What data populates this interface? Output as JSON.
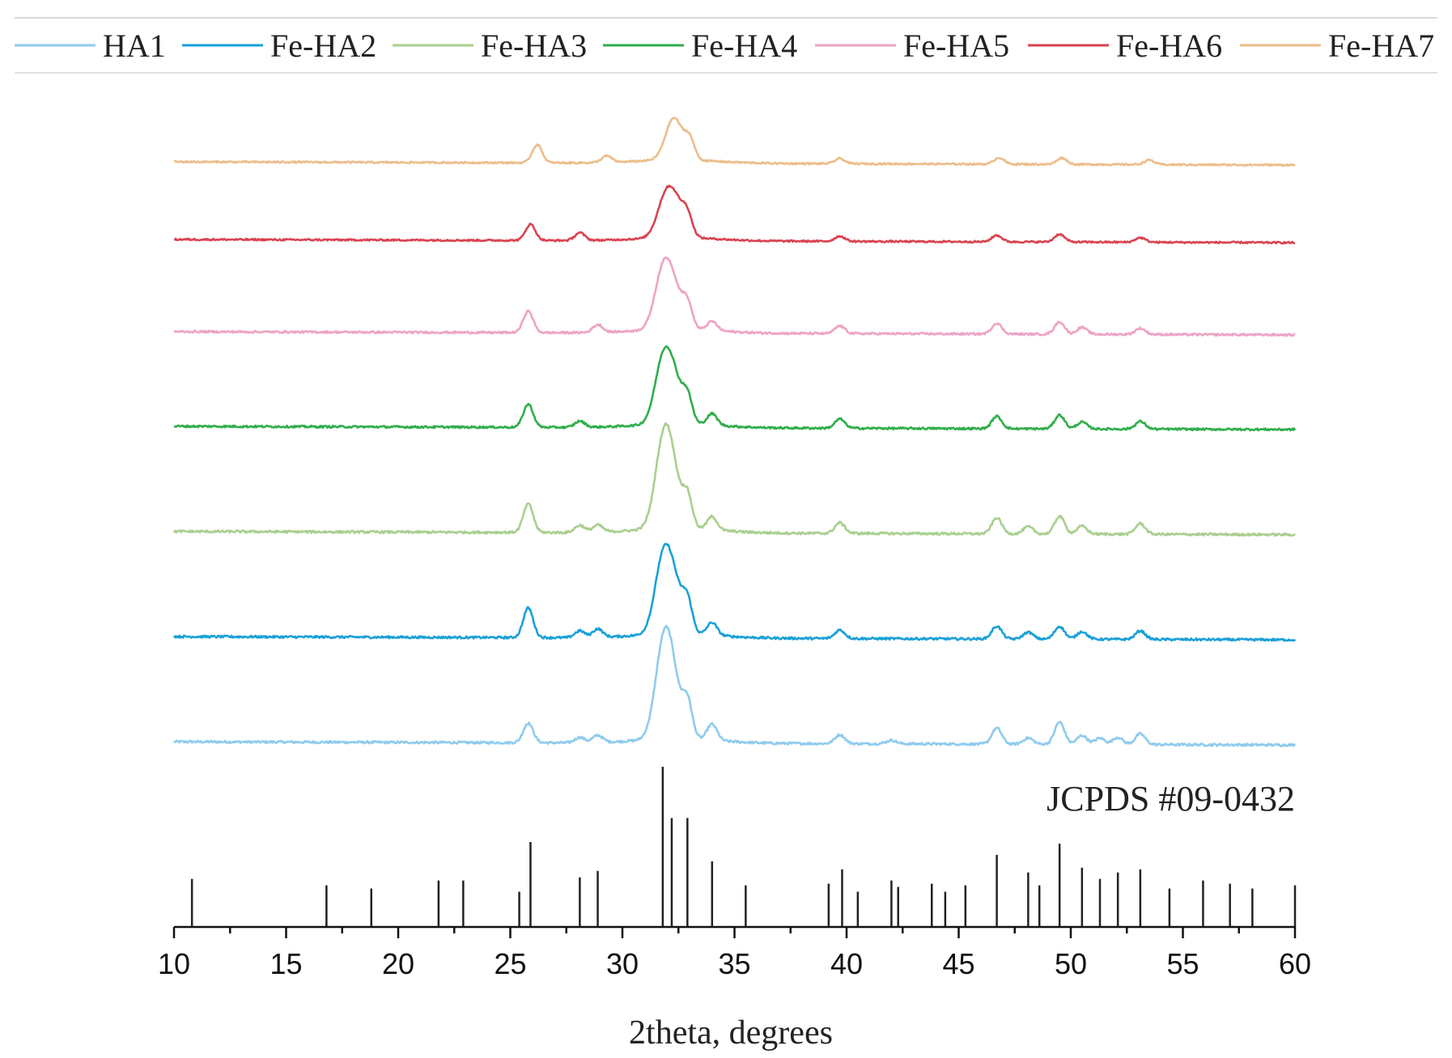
{
  "chart_data": {
    "type": "line",
    "xlabel": "2theta, degrees",
    "ylabel": "",
    "xlim": [
      10,
      60
    ],
    "x_ticks": [
      "10",
      "15",
      "20",
      "25",
      "30",
      "35",
      "40",
      "45",
      "50",
      "55",
      "60"
    ],
    "grid": false,
    "legend_position": "top",
    "series": [
      {
        "name": "HA1",
        "color": "#8ecbee"
      },
      {
        "name": "Fe-HA2",
        "color": "#1aa0d8"
      },
      {
        "name": "Fe-HA3",
        "color": "#a9cf8f"
      },
      {
        "name": "Fe-HA4",
        "color": "#2fae4a"
      },
      {
        "name": "Fe-HA5",
        "color": "#eea3c3"
      },
      {
        "name": "Fe-HA6",
        "color": "#d9434f"
      },
      {
        "name": "Fe-HA7",
        "color": "#edbd8a"
      }
    ],
    "peak_profiles": [
      {
        "name": "HA1",
        "peaks": [
          [
            25.8,
            22
          ],
          [
            28.1,
            6
          ],
          [
            28.9,
            8
          ],
          [
            31.8,
            85
          ],
          [
            32.2,
            60
          ],
          [
            32.9,
            40
          ],
          [
            34.0,
            18
          ],
          [
            39.7,
            10
          ],
          [
            42.0,
            4
          ],
          [
            46.7,
            18
          ],
          [
            48.1,
            7
          ],
          [
            49.5,
            25
          ],
          [
            50.5,
            10
          ],
          [
            51.3,
            7
          ],
          [
            52.1,
            8
          ],
          [
            53.1,
            12
          ]
        ]
      },
      {
        "name": "Fe-HA2",
        "peaks": [
          [
            25.8,
            35
          ],
          [
            28.1,
            8
          ],
          [
            28.9,
            10
          ],
          [
            31.8,
            80
          ],
          [
            32.3,
            50
          ],
          [
            32.9,
            35
          ],
          [
            34.0,
            15
          ],
          [
            39.7,
            10
          ],
          [
            46.7,
            15
          ],
          [
            48.1,
            8
          ],
          [
            49.5,
            15
          ],
          [
            50.5,
            9
          ],
          [
            53.1,
            10
          ]
        ]
      },
      {
        "name": "Fe-HA3",
        "peaks": [
          [
            25.8,
            32
          ],
          [
            28.1,
            8
          ],
          [
            28.9,
            8
          ],
          [
            31.8,
            80
          ],
          [
            32.2,
            55
          ],
          [
            32.9,
            35
          ],
          [
            34.0,
            15
          ],
          [
            39.7,
            12
          ],
          [
            46.7,
            18
          ],
          [
            48.1,
            8
          ],
          [
            49.5,
            20
          ],
          [
            50.5,
            9
          ],
          [
            53.1,
            12
          ]
        ]
      },
      {
        "name": "Fe-HA4",
        "peaks": [
          [
            25.8,
            30
          ],
          [
            28.1,
            8
          ],
          [
            31.8,
            75
          ],
          [
            32.3,
            50
          ],
          [
            32.9,
            32
          ],
          [
            34.0,
            15
          ],
          [
            39.7,
            12
          ],
          [
            46.7,
            16
          ],
          [
            49.5,
            18
          ],
          [
            50.5,
            9
          ],
          [
            53.1,
            10
          ]
        ]
      },
      {
        "name": "Fe-HA5",
        "peaks": [
          [
            25.8,
            28
          ],
          [
            28.9,
            10
          ],
          [
            31.8,
            70
          ],
          [
            32.3,
            45
          ],
          [
            32.9,
            30
          ],
          [
            34.0,
            12
          ],
          [
            39.7,
            10
          ],
          [
            46.7,
            14
          ],
          [
            49.5,
            16
          ],
          [
            50.5,
            9
          ],
          [
            53.1,
            8
          ]
        ]
      },
      {
        "name": "Fe-HA6",
        "peaks": [
          [
            25.9,
            25
          ],
          [
            28.1,
            12
          ],
          [
            31.9,
            55
          ],
          [
            32.4,
            45
          ],
          [
            32.9,
            28
          ],
          [
            39.7,
            8
          ],
          [
            46.7,
            10
          ],
          [
            49.5,
            12
          ],
          [
            53.1,
            7
          ]
        ]
      },
      {
        "name": "Fe-HA7",
        "peaks": [
          [
            26.2,
            28
          ],
          [
            29.3,
            10
          ],
          [
            32.3,
            65
          ],
          [
            33.0,
            30
          ],
          [
            39.7,
            8
          ],
          [
            46.8,
            10
          ],
          [
            49.6,
            10
          ],
          [
            53.5,
            7
          ]
        ]
      }
    ],
    "reference": {
      "label": "JCPDS #09-0432",
      "lines": [
        [
          10.8,
          30
        ],
        [
          16.8,
          26
        ],
        [
          18.8,
          24
        ],
        [
          21.8,
          29
        ],
        [
          22.9,
          29
        ],
        [
          25.4,
          22
        ],
        [
          25.9,
          53
        ],
        [
          28.1,
          31
        ],
        [
          28.9,
          35
        ],
        [
          31.8,
          100
        ],
        [
          32.2,
          68
        ],
        [
          32.9,
          68
        ],
        [
          34.0,
          41
        ],
        [
          35.5,
          26
        ],
        [
          39.2,
          27
        ],
        [
          39.8,
          36
        ],
        [
          40.5,
          22
        ],
        [
          42.0,
          29
        ],
        [
          42.3,
          25
        ],
        [
          43.8,
          27
        ],
        [
          44.4,
          22
        ],
        [
          45.3,
          26
        ],
        [
          46.7,
          45
        ],
        [
          48.1,
          34
        ],
        [
          48.6,
          26
        ],
        [
          49.5,
          52
        ],
        [
          50.5,
          37
        ],
        [
          51.3,
          30
        ],
        [
          52.1,
          34
        ],
        [
          53.1,
          36
        ],
        [
          54.4,
          24
        ],
        [
          55.9,
          29
        ],
        [
          57.1,
          27
        ],
        [
          58.1,
          24
        ],
        [
          60.0,
          26
        ]
      ]
    }
  }
}
